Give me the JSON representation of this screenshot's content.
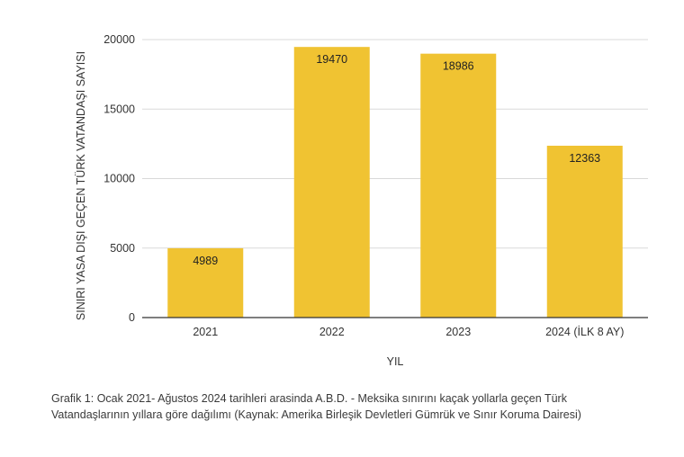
{
  "chart_data": {
    "type": "bar",
    "categories": [
      "2021",
      "2022",
      "2023",
      "2024 (İLK 8 AY)"
    ],
    "values": [
      4989,
      19470,
      18986,
      12363
    ],
    "xlabel": "YIL",
    "ylabel": "SINIRI YASA DIŞI GEÇEN TÜRK VATANDAŞI SAYISI",
    "ylim": [
      0,
      20000
    ],
    "yticks": [
      0,
      5000,
      10000,
      15000,
      20000
    ],
    "grid": true,
    "bar_color": "#F0C332"
  },
  "caption": {
    "line1": "Grafik 1: Ocak 2021- Ağustos 2024 tarihleri arasinda A.B.D. - Meksika sınırını kaçak yollarla geçen Türk",
    "line2": "Vatandaşlarının yıllara göre dağılımı (Kaynak: Amerika Birleşik Devletleri Gümrük ve Sınır Koruma Dairesi)"
  }
}
